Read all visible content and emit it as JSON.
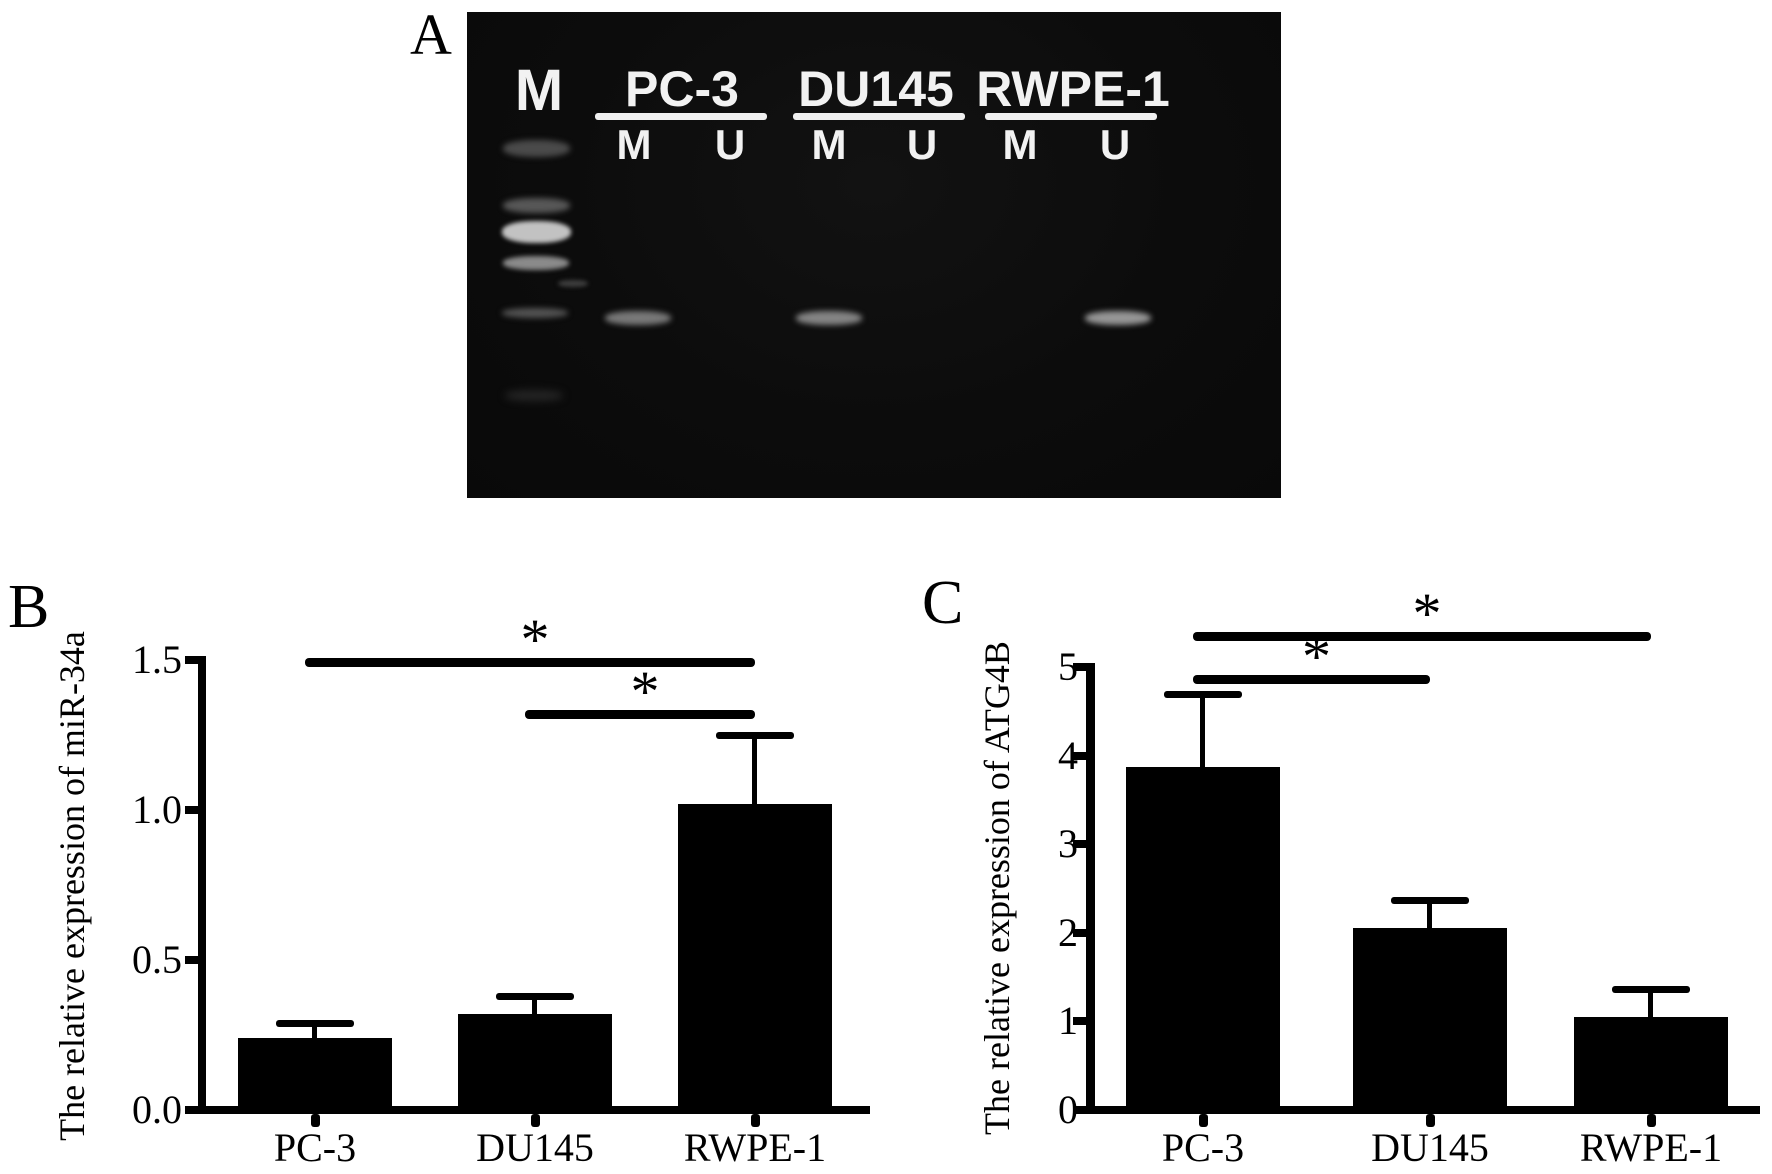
{
  "figure": {
    "panel_a": {
      "label": "A",
      "type": "methylation-specific PCR gel",
      "marker_lane_label": "M",
      "groups": [
        {
          "name": "PC-3",
          "sub_lanes": [
            "M",
            "U"
          ]
        },
        {
          "name": "DU145",
          "sub_lanes": [
            "M",
            "U"
          ]
        },
        {
          "name": "RWPE-1",
          "sub_lanes": [
            "M",
            "U"
          ]
        }
      ],
      "bands_detected": [
        {
          "group": "PC-3",
          "lane": "M"
        },
        {
          "group": "DU145",
          "lane": "M"
        },
        {
          "group": "RWPE-1",
          "lane": "U"
        }
      ],
      "ladder_band_count": 6
    },
    "panel_b": {
      "label": "B"
    },
    "panel_c": {
      "label": "C"
    }
  },
  "chart_data": [
    {
      "panel": "B",
      "type": "bar",
      "title": "",
      "xlabel": "",
      "ylabel": "The relative expression of miR-34a",
      "categories": [
        "PC-3",
        "DU145",
        "RWPE-1"
      ],
      "values": [
        0.24,
        0.32,
        1.02
      ],
      "errors_plus": [
        0.05,
        0.06,
        0.23
      ],
      "ylim": [
        0,
        1.5
      ],
      "yticks": [
        "0.0",
        "0.5",
        "1.0",
        "1.5"
      ],
      "ytick_values": [
        0,
        0.5,
        1.0,
        1.5
      ],
      "grid": false,
      "legend": null,
      "bar_color": "#000000",
      "significance": [
        {
          "from": "PC-3",
          "to": "RWPE-1",
          "label": "*"
        },
        {
          "from": "DU145",
          "to": "RWPE-1",
          "label": "*"
        }
      ]
    },
    {
      "panel": "C",
      "type": "bar",
      "title": "",
      "xlabel": "",
      "ylabel": "The relative expression of ATG4B",
      "categories": [
        "PC-3",
        "DU145",
        "RWPE-1"
      ],
      "values": [
        3.87,
        2.05,
        1.05
      ],
      "errors_plus": [
        0.82,
        0.32,
        0.32
      ],
      "ylim": [
        0,
        5
      ],
      "yticks": [
        "0",
        "1",
        "2",
        "3",
        "4",
        "5"
      ],
      "ytick_values": [
        0,
        1,
        2,
        3,
        4,
        5
      ],
      "grid": false,
      "legend": null,
      "bar_color": "#000000",
      "significance": [
        {
          "from": "PC-3",
          "to": "RWPE-1",
          "label": "*"
        },
        {
          "from": "PC-3",
          "to": "DU145",
          "label": "*"
        }
      ]
    }
  ]
}
